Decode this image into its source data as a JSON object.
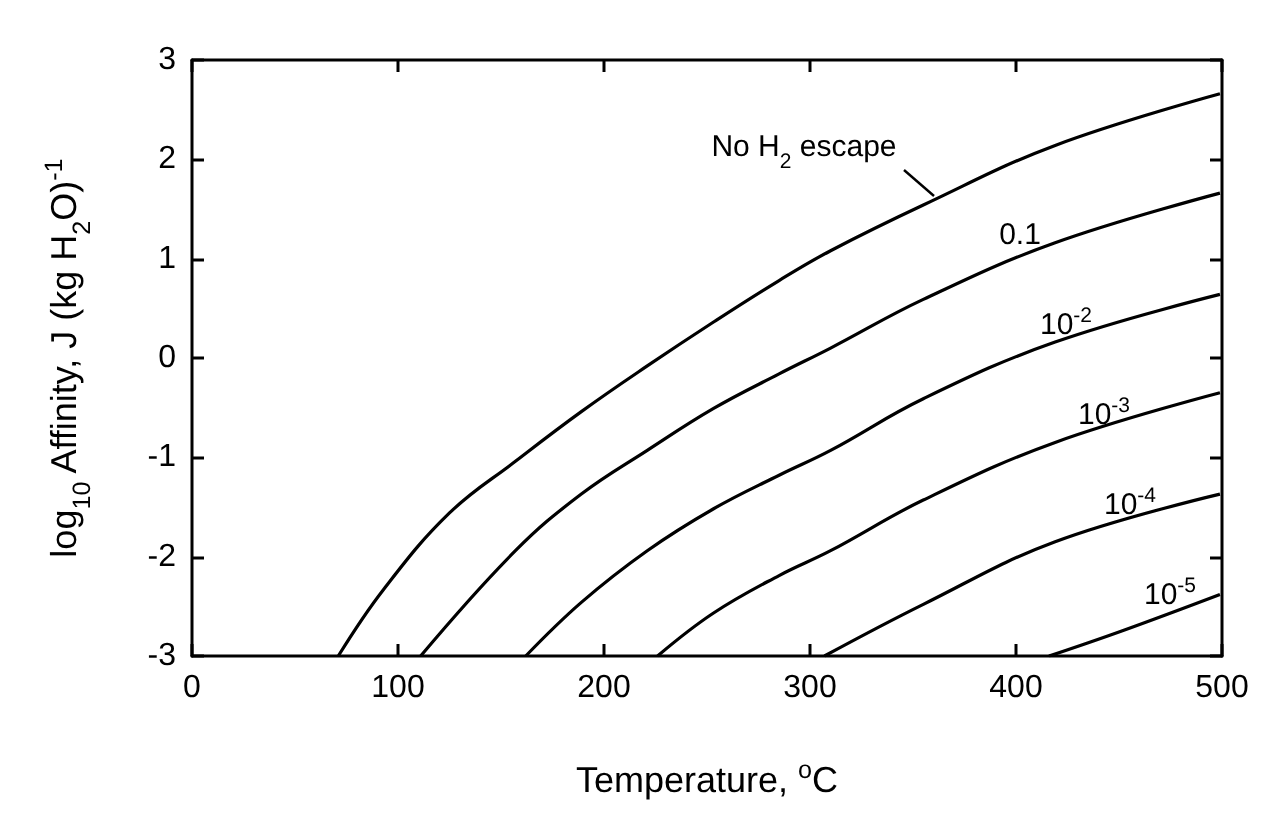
{
  "chart_data": {
    "type": "line",
    "xlabel": "Temperature, $^{o}$C",
    "ylabel": "log$_{10}$ Affinity, J (kg H$_{2}$O)$^{-1}$",
    "xlim": [
      0,
      500
    ],
    "xticks": [
      0,
      100,
      200,
      300,
      400,
      500
    ],
    "ylim": [
      -3,
      3
    ],
    "yticks": [
      -3,
      -2,
      -1,
      0,
      1,
      2,
      3
    ],
    "grid": false,
    "marker": "none",
    "line_style": "solid",
    "series": [
      {
        "color": "#000000",
        "x": [
          71,
          93,
          125,
          157,
          189,
          221,
          253,
          285,
          310,
          355,
          419,
          499
        ],
        "values": [
          -3,
          -2.33,
          -1.56,
          -1.04,
          -0.54,
          -0.08,
          0.36,
          0.78,
          1.08,
          1.54,
          2.14,
          2.66
        ]
      },
      {
        "color": "#000000",
        "x": [
          111,
          157,
          189,
          221,
          253,
          285,
          310,
          355,
          419,
          499
        ],
        "values": [
          -3,
          -1.94,
          -1.37,
          -0.93,
          -0.51,
          -0.16,
          0.1,
          0.59,
          1.16,
          1.66
        ]
      },
      {
        "color": "#000000",
        "x": [
          162,
          189,
          221,
          253,
          285,
          310,
          355,
          419,
          499
        ],
        "values": [
          -3,
          -2.46,
          -1.94,
          -1.52,
          -1.18,
          -0.93,
          -0.41,
          0.16,
          0.64
        ]
      },
      {
        "color": "#000000",
        "x": [
          226,
          253,
          285,
          310,
          355,
          419,
          499
        ],
        "values": [
          -3,
          -2.57,
          -2.19,
          -1.94,
          -1.43,
          -0.85,
          -0.35
        ]
      },
      {
        "color": "#000000",
        "x": [
          307,
          355,
          419,
          499
        ],
        "values": [
          -3,
          -2.48,
          -1.85,
          -1.37
        ]
      },
      {
        "color": "#000000",
        "x": [
          416,
          451,
          499
        ],
        "values": [
          -3,
          -2.75,
          -2.38
        ]
      }
    ],
    "annotations": [
      "No H$_{2}$ escape",
      "0.1",
      "10$^{-2}$",
      "10$^{-3}$",
      "10$^{-4}$",
      "10$^{-5}$"
    ]
  }
}
